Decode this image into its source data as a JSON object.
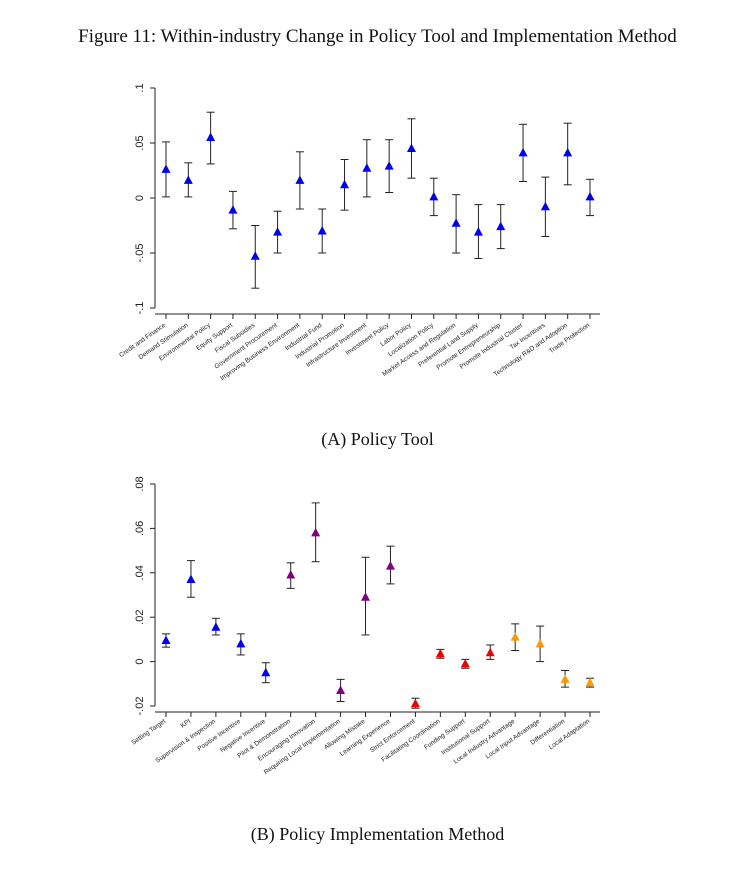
{
  "figure": {
    "title": "Figure 11: Within-industry Change in Policy Tool and Implementation Method"
  },
  "panels": [
    {
      "caption": "(A) Policy Tool"
    },
    {
      "caption": "(B) Policy Implementation Method"
    }
  ],
  "colors": {
    "blue": "#0000ee",
    "purple": "#800080",
    "red": "#ee0000",
    "orange": "#ff9900",
    "errorbar": "#222222",
    "axis": "#222222"
  },
  "chart_data": [
    {
      "type": "scatter",
      "caption": "(A) Policy Tool",
      "ylim": [
        -0.1,
        0.1
      ],
      "yticks": [
        -0.1,
        -0.05,
        0,
        0.05,
        0.1
      ],
      "ytick_labels": [
        "-.1",
        "-.05",
        "0",
        ".05",
        ".1"
      ],
      "grid": false,
      "categories": [
        "Credit and Finance",
        "Demand Stimulation",
        "Environmental Policy",
        "Equity Support",
        "Fiscal Subsidies",
        "Government Procurement",
        "Improving Business Environment",
        "Industrial Fund",
        "Industrial Promotion",
        "Infrastructure Investment",
        "Investment Policy",
        "Labor Policy",
        "Localization Policy",
        "Market Access and Regulation",
        "Preferential Land Supply",
        "Promote Entrepreneurship",
        "Promote Industrial Cluster",
        "Tax Incentives",
        "Technology R&D and Adoption",
        "Trade Protection"
      ],
      "values": [
        0.026,
        0.016,
        0.055,
        -0.011,
        -0.053,
        -0.031,
        0.016,
        -0.03,
        0.012,
        0.027,
        0.029,
        0.045,
        0.001,
        -0.023,
        -0.031,
        -0.026,
        0.041,
        -0.008,
        0.041,
        0.001
      ],
      "ci_low": [
        0.001,
        0.001,
        0.031,
        -0.028,
        -0.082,
        -0.05,
        -0.01,
        -0.05,
        -0.011,
        0.001,
        0.005,
        0.018,
        -0.016,
        -0.05,
        -0.055,
        -0.046,
        0.015,
        -0.035,
        0.012,
        -0.016
      ],
      "ci_high": [
        0.051,
        0.032,
        0.078,
        0.006,
        -0.025,
        -0.012,
        0.042,
        -0.01,
        0.035,
        0.053,
        0.053,
        0.072,
        0.018,
        0.003,
        -0.006,
        -0.006,
        0.067,
        0.019,
        0.068,
        0.017
      ],
      "colors": [
        "blue",
        "blue",
        "blue",
        "blue",
        "blue",
        "blue",
        "blue",
        "blue",
        "blue",
        "blue",
        "blue",
        "blue",
        "blue",
        "blue",
        "blue",
        "blue",
        "blue",
        "blue",
        "blue",
        "blue"
      ]
    },
    {
      "type": "scatter",
      "caption": "(B) Policy Implementation Method",
      "ylim": [
        -0.02,
        0.08
      ],
      "yticks": [
        -0.02,
        0,
        0.02,
        0.04,
        0.06,
        0.08
      ],
      "ytick_labels": [
        "-.02",
        "0",
        ".02",
        ".04",
        ".06",
        ".08"
      ],
      "grid": false,
      "categories": [
        "Setting Target",
        "KPI",
        "Supervision & Inspection",
        "Positive Incentive",
        "Negative Incentive",
        "Pilot & Demonstration",
        "Encouraging Innovation",
        "Requiring Local Implementation",
        "Allowing Mistake",
        "Learning Experience",
        "Strict Enforcement",
        "Facilitating Coordination",
        "Funding Support",
        "Institutional Support",
        "Local Industry Advantage",
        "Local Input Advantage",
        "Differentiation",
        "Local Adaptation"
      ],
      "values": [
        0.0095,
        0.037,
        0.0155,
        0.008,
        -0.005,
        0.039,
        0.058,
        -0.013,
        0.029,
        0.043,
        -0.019,
        0.0035,
        -0.001,
        0.004,
        0.011,
        0.008,
        -0.008,
        -0.0095
      ],
      "ci_low": [
        0.0065,
        0.029,
        0.012,
        0.003,
        -0.0095,
        0.033,
        0.045,
        -0.018,
        0.012,
        0.035,
        -0.021,
        0.0015,
        -0.003,
        0.001,
        0.005,
        0.0,
        -0.0115,
        -0.0115
      ],
      "ci_high": [
        0.0125,
        0.0455,
        0.0195,
        0.0125,
        -0.0005,
        0.0445,
        0.0715,
        -0.008,
        0.047,
        0.052,
        -0.0165,
        0.0055,
        0.001,
        0.0075,
        0.017,
        0.016,
        -0.004,
        -0.0075
      ],
      "colors": [
        "blue",
        "blue",
        "blue",
        "blue",
        "blue",
        "purple",
        "purple",
        "purple",
        "purple",
        "purple",
        "red",
        "red",
        "red",
        "red",
        "orange",
        "orange",
        "orange",
        "orange"
      ]
    }
  ]
}
